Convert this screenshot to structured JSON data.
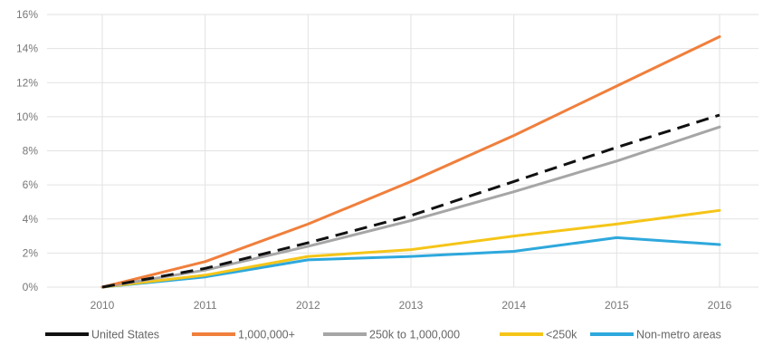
{
  "chart_data": {
    "type": "line",
    "x": [
      "2010",
      "2011",
      "2012",
      "2013",
      "2014",
      "2015",
      "2016"
    ],
    "y_ticks": [
      "0%",
      "2%",
      "4%",
      "6%",
      "8%",
      "10%",
      "12%",
      "14%",
      "16%"
    ],
    "ylim": [
      0,
      16
    ],
    "grid": true,
    "legend_position": "bottom",
    "series": [
      {
        "name": "United States",
        "color": "#111111",
        "dash": true,
        "values": [
          0,
          1.1,
          2.6,
          4.2,
          6.2,
          8.2,
          10.1
        ]
      },
      {
        "name": "1,000,000+",
        "color": "#f07f3c",
        "dash": false,
        "values": [
          0,
          1.5,
          3.7,
          6.2,
          8.9,
          11.8,
          14.7
        ]
      },
      {
        "name": "250k to 1,000,000",
        "color": "#a6a6a6",
        "dash": false,
        "values": [
          0,
          1.0,
          2.4,
          3.9,
          5.6,
          7.4,
          9.4
        ]
      },
      {
        "name": "<250k",
        "color": "#f5c518",
        "dash": false,
        "values": [
          0,
          0.7,
          1.8,
          2.2,
          3.0,
          3.7,
          4.5
        ]
      },
      {
        "name": "Non-metro areas",
        "color": "#2ea8dc",
        "dash": false,
        "values": [
          0,
          0.6,
          1.6,
          1.8,
          2.1,
          2.9,
          2.5
        ]
      }
    ]
  }
}
